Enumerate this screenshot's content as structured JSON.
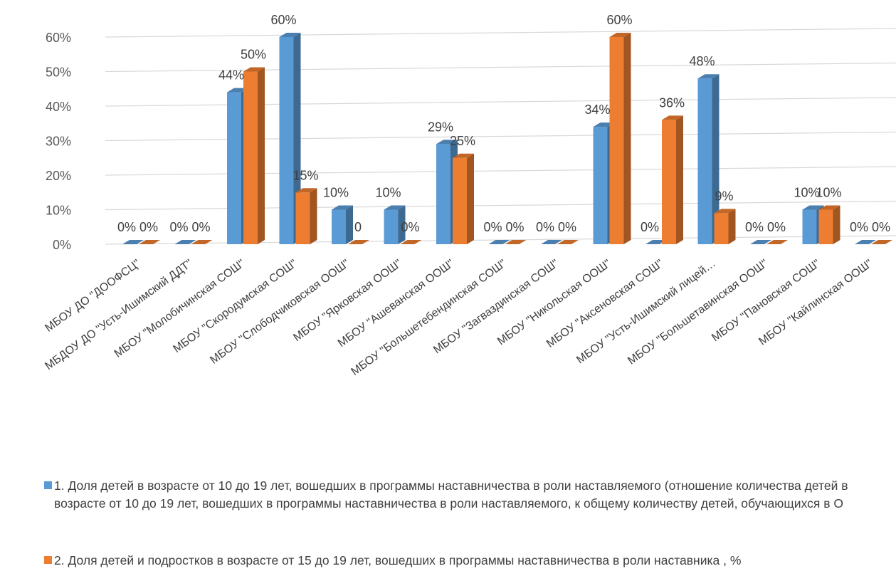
{
  "chart_data": {
    "type": "bar",
    "title": "",
    "categories": [
      "МБОУ ДО \"ДООФСЦ\"",
      "МБДОУ ДО \"Усть-Ишимский ДДТ\"",
      "МБОУ \"Молобичинская СОШ\"",
      "МБОУ \"Скородумская СОШ\"",
      "МБОУ \"Слободчиковская ООШ\"",
      "МБОУ \"Ярковская ООШ\"",
      "МБОУ \"Ашеванская ООШ\"",
      "МБОУ \"Большетебендинская СОШ\"",
      "МБОУ \"Загваздинская СОШ\"",
      "МБОУ \"Никольская ООШ\"",
      "МБОУ \"Аксеновская СОШ\"",
      "МБОУ \"Усть-Ишимский лицей…",
      "МБОУ \"Большетавинская ООШ\"",
      "МБОУ \"Пановская СОШ\"",
      "МБОУ \"Кайлинская ООШ\""
    ],
    "series": [
      {
        "name": "1. Доля детей в возрасте от 10 до 19 лет, вошедших в программы наставничества в роли наставляемого (отношение количества детей в возрасте от 10 до 19 лет, вошедших в программы наставничества в роли наставляемого, к общему количеству детей, обучающихся в О",
        "color": "#5B9BD5",
        "values": [
          0,
          0,
          44,
          60,
          10,
          10,
          29,
          0,
          0,
          34,
          0,
          48,
          0,
          10,
          0
        ],
        "labels": [
          "0%",
          "0%",
          "44%",
          "60%",
          "10%",
          "10%",
          "29%",
          "0%",
          "0%",
          "34%",
          "0%",
          "48%",
          "0%",
          "10%",
          "0%"
        ]
      },
      {
        "name": "2. Доля детей и подростков в возрасте от 15 до 19 лет, вошедших в программы наставничества в роли наставника , %",
        "color": "#ED7D31",
        "values": [
          0,
          0,
          50,
          15,
          0,
          0,
          25,
          0,
          0,
          60,
          36,
          9,
          0,
          10,
          0
        ],
        "labels": [
          "0%",
          "0%",
          "50%",
          "15%",
          "0",
          "0%",
          "25%",
          "0%",
          "0%",
          "60%",
          "36%",
          "9%",
          "0%",
          "10%",
          "0%"
        ]
      }
    ],
    "y_ticks": [
      "0%",
      "10%",
      "20%",
      "30%",
      "40%",
      "50%",
      "60%"
    ],
    "ylim": [
      0,
      60
    ],
    "grid": true,
    "legend_position": "bottom"
  }
}
